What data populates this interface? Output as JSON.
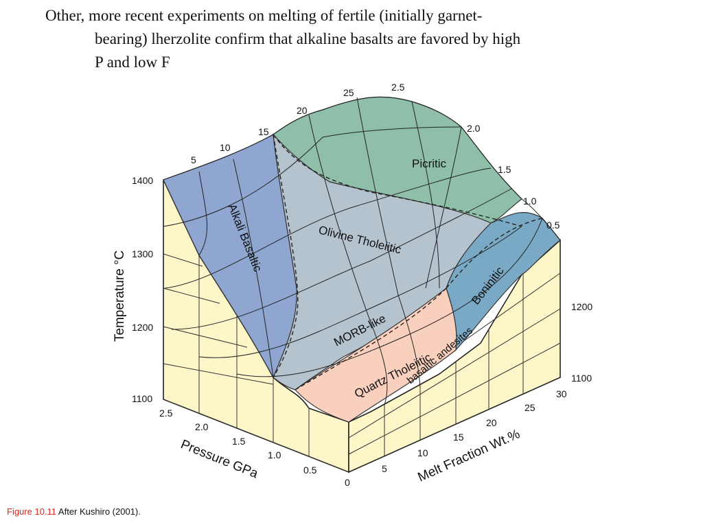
{
  "slide": {
    "text_line1": "Other, more recent experiments on melting of fertile (initially garnet-",
    "text_line2": "bearing) lherzolite confirm that alkaline basalts are favored by high",
    "text_line3": "P and low F"
  },
  "figure": {
    "axes": {
      "temperature_label": "Temperature °C",
      "temperature_ticks": [
        "1400",
        "1300",
        "1200",
        "1100"
      ],
      "temperature_ticks_right": [
        "1200",
        "1100"
      ],
      "pressure_label": "Pressure GPa",
      "pressure_ticks": [
        "2.5",
        "2.0",
        "1.5",
        "1.0",
        "0.5"
      ],
      "pressure_top_ticks": [
        "2.5",
        "2.0",
        "1.5",
        "1.0",
        "0.5"
      ],
      "melt_label": "Melt Fraction Wt.%",
      "melt_ticks": [
        "0",
        "5",
        "10",
        "15",
        "20",
        "25",
        "30"
      ],
      "melt_top_ticks": [
        "5",
        "10",
        "15",
        "20",
        "25"
      ]
    },
    "regions": {
      "picritic": "Picritic",
      "alkali": "Alkali Basaltic",
      "olivine": "Olivine Tholeiitic",
      "morb": "MORB-like",
      "quartz": "Quartz Tholeiitic",
      "basaltic_andesites": "basaltic andesites",
      "boninitic": "Boninitic"
    },
    "colors": {
      "picritic": "#8fbfa9",
      "alkali": "#8fa6d1",
      "olivine": "#b5c3cf",
      "quartz": "#f9cfbd",
      "boninitic": "#7aa9c5",
      "block": "#fcf6c8"
    }
  },
  "caption": {
    "figure_label": "Figure 10.11",
    "text": " After Kushiro (2001)."
  }
}
